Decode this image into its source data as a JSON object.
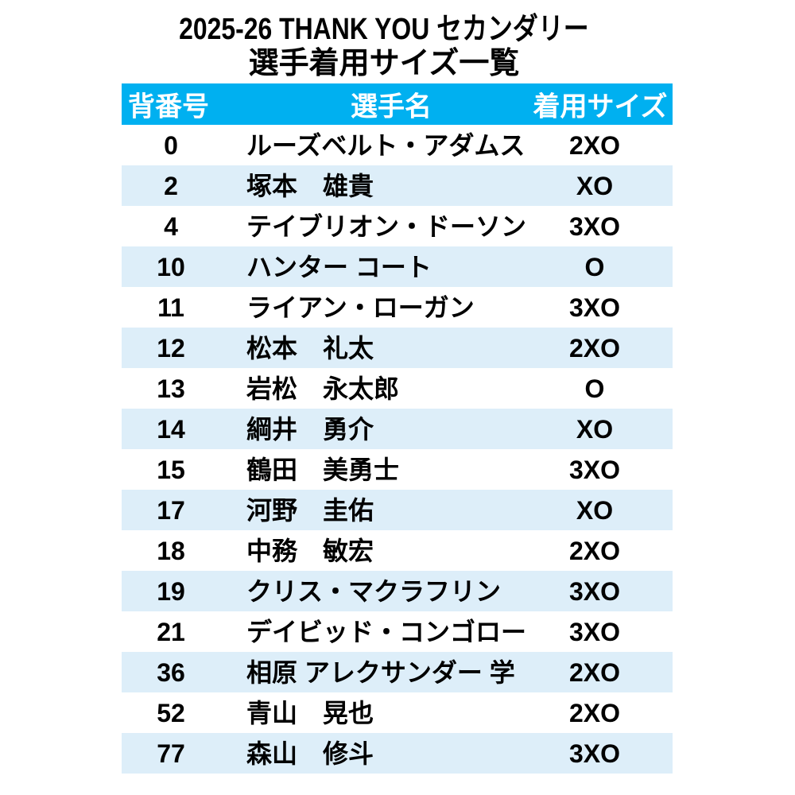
{
  "title": {
    "line1": "2025-26 THANK YOU セカンダリー",
    "line2": "選手着用サイズ一覧"
  },
  "table": {
    "columns": [
      "背番号",
      "選手名",
      "着用サイズ"
    ],
    "rows": [
      {
        "number": "0",
        "name": "ルーズベルト・アダムス",
        "size": "2XO"
      },
      {
        "number": "2",
        "name": "塚本　雄貴",
        "size": "XO"
      },
      {
        "number": "4",
        "name": "テイブリオン・ドーソン",
        "size": "3XO"
      },
      {
        "number": "10",
        "name": "ハンター コート",
        "size": "O"
      },
      {
        "number": "11",
        "name": "ライアン・ローガン",
        "size": "3XO"
      },
      {
        "number": "12",
        "name": "松本　礼太",
        "size": "2XO"
      },
      {
        "number": "13",
        "name": "岩松　永太郎",
        "size": "O"
      },
      {
        "number": "14",
        "name": "綱井　勇介",
        "size": "XO"
      },
      {
        "number": "15",
        "name": "鶴田　美勇士",
        "size": "3XO"
      },
      {
        "number": "17",
        "name": "河野　圭佑",
        "size": "XO"
      },
      {
        "number": "18",
        "name": "中務　敏宏",
        "size": "2XO"
      },
      {
        "number": "19",
        "name": "クリス・マクラフリン",
        "size": "3XO"
      },
      {
        "number": "21",
        "name": "デイビッド・コンゴロー",
        "size": "3XO"
      },
      {
        "number": "36",
        "name": "相原 アレクサンダー 学",
        "size": "2XO"
      },
      {
        "number": "52",
        "name": "青山　晃也",
        "size": "2XO"
      },
      {
        "number": "77",
        "name": "森山　修斗",
        "size": "3XO"
      }
    ]
  },
  "colors": {
    "header_bg": "#00B0F0",
    "header_text": "#FFFFFF",
    "row_alt_bg": "#DDEEF9",
    "text": "#000000"
  }
}
